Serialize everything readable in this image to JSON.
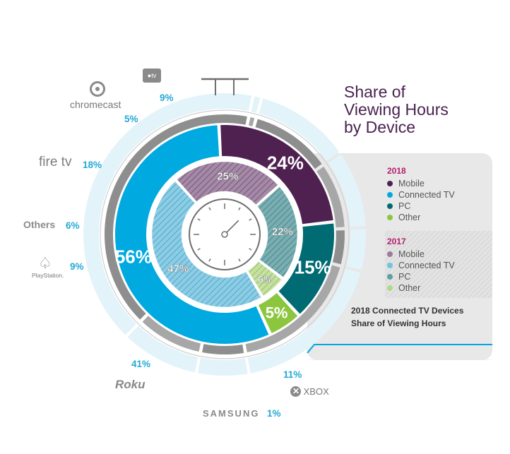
{
  "chart_data": {
    "type": "pie",
    "title": "Share of Viewing Hours by Device",
    "title_lines": [
      "Share of",
      "Viewing Hours",
      "by Device"
    ],
    "rings": [
      {
        "name": "2018",
        "categories": [
          "Mobile",
          "Connected TV",
          "PC",
          "Other"
        ],
        "values": [
          24,
          56,
          15,
          5
        ],
        "labels": [
          "24%",
          "56%",
          "15%",
          "5%"
        ]
      },
      {
        "name": "2017",
        "categories": [
          "Mobile",
          "Connected TV",
          "PC",
          "Other"
        ],
        "values": [
          25,
          47,
          22,
          6
        ],
        "labels": [
          "25%",
          "47%",
          "22%",
          "6%"
        ]
      },
      {
        "name": "2018 Connected TV Devices Share of Viewing Hours",
        "categories": [
          "Roku",
          "Samsung",
          "Xbox",
          "Apple TV",
          "Chromecast",
          "Fire TV",
          "Others",
          "PlayStation"
        ],
        "values": [
          41,
          1,
          11,
          9,
          5,
          18,
          6,
          9
        ],
        "labels": [
          "41%",
          "1%",
          "11%",
          "9%",
          "5%",
          "18%",
          "6%",
          "9%"
        ]
      }
    ],
    "colors": {
      "Mobile": "#4f2150",
      "Connected TV": "#00a9df",
      "PC": "#006b73",
      "Other": "#8cc63f",
      "tv_label": "#23a9d6",
      "title": "#4a2350"
    },
    "legend_placement": "right"
  },
  "legend": {
    "year_2018": "2018",
    "year_2017": "2017",
    "items": [
      "Mobile",
      "Connected TV",
      "PC",
      "Other"
    ]
  },
  "callout": {
    "line1": "2018 Connected TV Devices",
    "line2": "Share of Viewing Hours"
  },
  "brands": {
    "roku": "Roku",
    "samsung": "SAMSUNG",
    "xbox": "XBOX",
    "appletv": "tv",
    "chromecast": "chromecast",
    "firetv": "fire tv",
    "others": "Others",
    "playstation": "PlayStation."
  },
  "icons": [
    "stopwatch-icon",
    "chromecast-icon",
    "apple-icon",
    "playstation-icon",
    "xbox-icon"
  ]
}
